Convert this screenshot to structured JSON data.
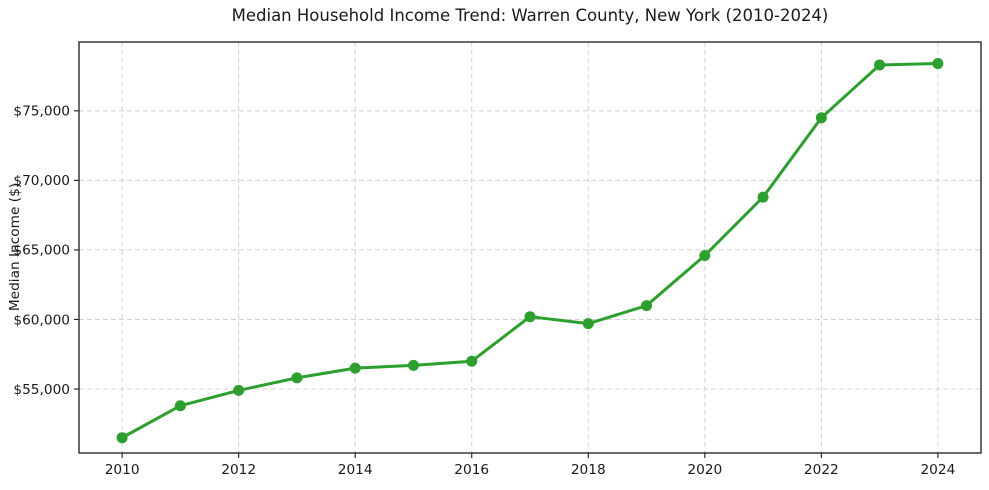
{
  "chart_data": {
    "type": "line",
    "title": "Median Household Income Trend: Warren County, New York (2010-2024)",
    "xlabel": "",
    "ylabel": "Median Income ($)",
    "x": [
      2010,
      2011,
      2012,
      2013,
      2014,
      2015,
      2016,
      2017,
      2018,
      2019,
      2020,
      2021,
      2022,
      2023,
      2024
    ],
    "series": [
      {
        "name": "Median Household Income",
        "color": "#2ca02c",
        "values": [
          51500,
          53800,
          54900,
          55800,
          56500,
          56700,
          57000,
          60200,
          59700,
          61000,
          64600,
          68800,
          74500,
          78300,
          78400
        ]
      }
    ],
    "xticks": [
      2010,
      2012,
      2014,
      2016,
      2018,
      2020,
      2022,
      2024
    ],
    "xtick_labels": [
      "2010",
      "2012",
      "2014",
      "2016",
      "2018",
      "2020",
      "2022",
      "2024"
    ],
    "yticks": [
      55000,
      60000,
      65000,
      70000,
      75000
    ],
    "ytick_labels": [
      "$55,000",
      "$60,000",
      "$65,000",
      "$70,000",
      "$75,000"
    ],
    "xlim": [
      2009.26,
      2024.74
    ],
    "ylim": [
      50400,
      79950
    ],
    "grid": true,
    "grid_color": "#d2d2d2",
    "grid_dash": "5,3",
    "axis_color": "#1a1a1a",
    "line_width": 3,
    "marker": "circle",
    "marker_radius": 5.5,
    "legend": "none"
  }
}
